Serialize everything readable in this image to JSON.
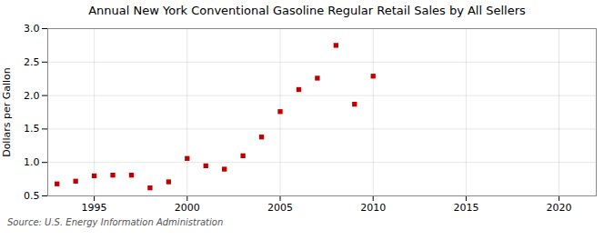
{
  "chart_data": {
    "type": "scatter",
    "title": "Annual New York Conventional Gasoline Regular Retail Sales by All Sellers",
    "ylabel": "Dollars per Gallon",
    "source": "Source: U.S. Energy Information Administration",
    "x": [
      1993,
      1994,
      1995,
      1996,
      1997,
      1998,
      1999,
      2000,
      2001,
      2002,
      2003,
      2004,
      2005,
      2006,
      2007,
      2008,
      2009,
      2010
    ],
    "values": [
      0.68,
      0.72,
      0.8,
      0.81,
      0.81,
      0.62,
      0.71,
      1.06,
      0.95,
      0.9,
      1.1,
      1.38,
      1.76,
      2.09,
      2.26,
      2.75,
      1.87,
      2.29
    ],
    "color": "#c00000",
    "marker": "square",
    "xlim": [
      1992.5,
      2022
    ],
    "ylim": [
      0.5,
      3.0
    ],
    "xticks": [
      1995,
      2000,
      2005,
      2010,
      2015,
      2020
    ],
    "yticks": [
      0.5,
      {
        "value": 1.0,
        "label": "1.0"
      },
      1.5,
      {
        "value": 2.0,
        "label": "2.0"
      },
      2.5,
      {
        "value": 3.0,
        "label": "3.0"
      }
    ],
    "grid": true
  }
}
